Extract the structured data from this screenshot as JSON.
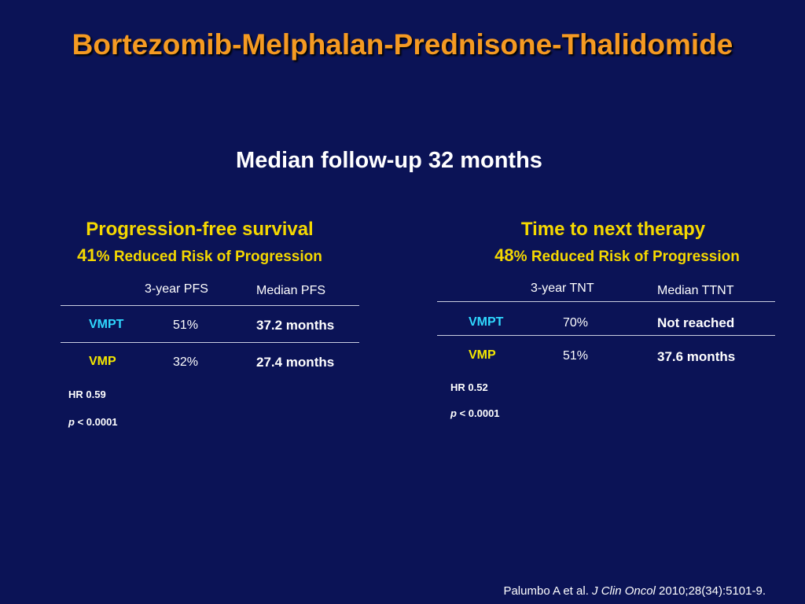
{
  "slide": {
    "title": "Bortezomib-Melphalan-Prednisone-Thalidomide",
    "subtitle": "Median follow-up 32 months"
  },
  "pfs": {
    "heading": "Progression-free survival",
    "reduction_number": "41",
    "reduction_text": "% Reduced Risk of Progression",
    "columns": [
      "3-year PFS",
      "Median PFS"
    ],
    "rows": [
      {
        "arm": "VMPT",
        "rate": "51%",
        "median": "37.2  months"
      },
      {
        "arm": "VMP",
        "rate": "32%",
        "median": "27.4  months"
      }
    ],
    "hr": "HR 0.59",
    "p_label": "p",
    "p_value": " < 0.0001"
  },
  "ttnt": {
    "heading": "Time to next therapy",
    "reduction_number": "48",
    "reduction_text": "% Reduced Risk of Progression",
    "columns": [
      "3-year TNT",
      "Median TTNT"
    ],
    "rows": [
      {
        "arm": "VMPT",
        "rate": "70%",
        "median": "Not reached"
      },
      {
        "arm": "VMP",
        "rate": "51%",
        "median": "37.6  months"
      }
    ],
    "hr": "HR 0.52",
    "p_label": "p",
    "p_value": " < 0.0001"
  },
  "citation": {
    "authors": "Palumbo A et al. ",
    "journal": "J Clin Oncol",
    "details": " 2010;28(34):5101-9."
  },
  "colors": {
    "background": "#0b1356",
    "title": "#f59a22",
    "section_heading": "#f5d800",
    "vmpt_label": "#2fd8ff",
    "vmp_label": "#f5e800"
  }
}
